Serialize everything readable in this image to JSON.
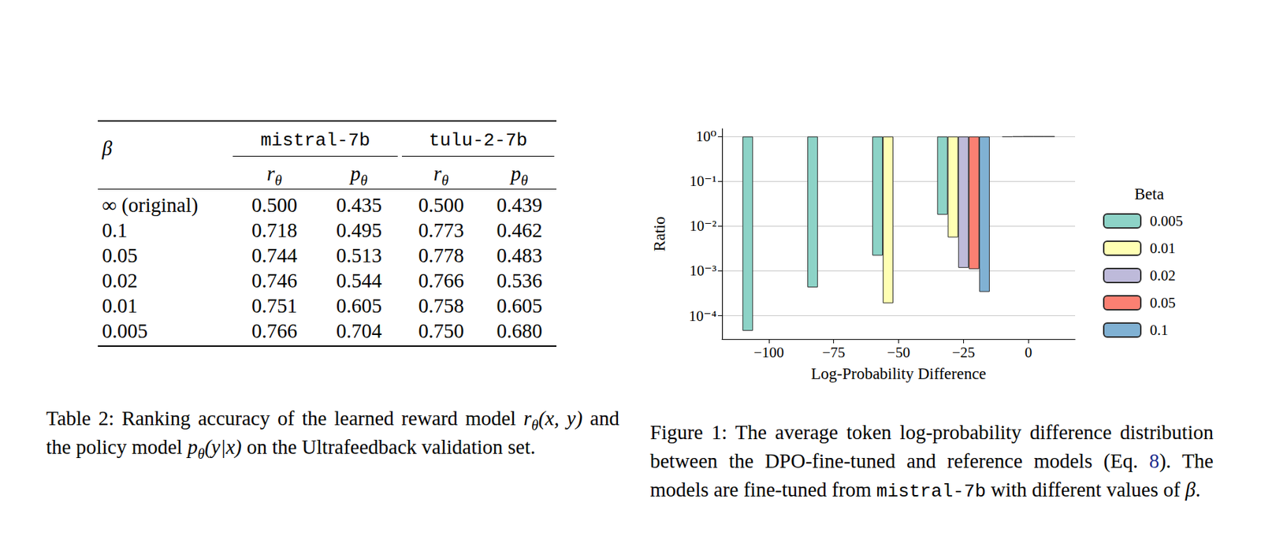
{
  "table": {
    "caption": [
      {
        "text": "Table 2: Ranking accuracy of the learned reward model "
      },
      {
        "text": "r",
        "style": "math"
      },
      {
        "text": "θ",
        "style": "math_sub"
      },
      {
        "text": "(x, y)",
        "style": "math"
      },
      {
        "text": " and the policy model "
      },
      {
        "text": "p",
        "style": "math"
      },
      {
        "text": "θ",
        "style": "math_sub"
      },
      {
        "text": "(y|x)",
        "style": "math"
      },
      {
        "text": " on the Ultrafeedback validation set."
      }
    ],
    "row_header": "β",
    "groups": [
      {
        "label": "mistral-7b",
        "columns": [
          {
            "text": "r",
            "sub": "θ"
          },
          {
            "text": "p",
            "sub": "θ"
          }
        ]
      },
      {
        "label": "tulu-2-7b",
        "columns": [
          {
            "text": "r",
            "sub": "θ"
          },
          {
            "text": "p",
            "sub": "θ"
          }
        ]
      }
    ],
    "rows": [
      [
        "∞ (original)",
        "0.500",
        "0.435",
        "0.500",
        "0.439"
      ],
      [
        "0.1",
        "0.718",
        "0.495",
        "0.773",
        "0.462"
      ],
      [
        "0.05",
        "0.744",
        "0.513",
        "0.778",
        "0.483"
      ],
      [
        "0.02",
        "0.746",
        "0.544",
        "0.766",
        "0.536"
      ],
      [
        "0.01",
        "0.751",
        "0.605",
        "0.758",
        "0.605"
      ],
      [
        "0.005",
        "0.766",
        "0.704",
        "0.750",
        "0.680"
      ]
    ]
  },
  "chart_data": {
    "type": "bar",
    "xlabel": "Log-Probability Difference",
    "ylabel": "Ratio",
    "x": [
      -100,
      -75,
      -50,
      -25,
      0
    ],
    "series": [
      {
        "name": "0.005",
        "color": "#8dd3c7",
        "values": [
          4.6e-05,
          0.00043,
          0.0022,
          0.018,
          0.979
        ]
      },
      {
        "name": "0.01",
        "color": "#ffffb3",
        "values": [
          null,
          null,
          0.00019,
          0.0056,
          0.994
        ]
      },
      {
        "name": "0.02",
        "color": "#bebada",
        "values": [
          null,
          null,
          null,
          0.00117,
          0.9988
        ]
      },
      {
        "name": "0.05",
        "color": "#fb8072",
        "values": [
          null,
          null,
          null,
          0.0011,
          0.9989
        ]
      },
      {
        "name": "0.1",
        "color": "#80b1d3",
        "values": [
          null,
          null,
          null,
          0.00034,
          0.9997
        ]
      }
    ],
    "xlim": [
      -118,
      18
    ],
    "xticks": [
      {
        "value": -100,
        "label": "−100"
      },
      {
        "value": -75,
        "label": "−75"
      },
      {
        "value": -50,
        "label": "−50"
      },
      {
        "value": -25,
        "label": "−25"
      },
      0
    ],
    "ylim": [
      3e-05,
      1.5
    ],
    "yticks": [
      {
        "value": 0.0001,
        "label": "10⁻⁴"
      },
      {
        "value": 0.001,
        "label": "10⁻³"
      },
      {
        "value": 0.01,
        "label": "10⁻²"
      },
      {
        "value": 0.1,
        "label": "10⁻¹"
      },
      {
        "value": 1,
        "label": "10⁰"
      }
    ],
    "log": "y",
    "grid": true,
    "legend": "right",
    "legend_title": "Beta"
  },
  "figure_caption": [
    {
      "text": "Figure 1: The average token log-probability difference distribution between the DPO-fine-tuned and reference models (Eq. "
    },
    {
      "text": "8",
      "style": "link"
    },
    {
      "text": "). The models are fine-tuned from "
    },
    {
      "text": "mistral-7b",
      "style": "mono"
    },
    {
      "text": " with different values of "
    },
    {
      "text": "β",
      "style": "math"
    },
    {
      "text": "."
    }
  ]
}
